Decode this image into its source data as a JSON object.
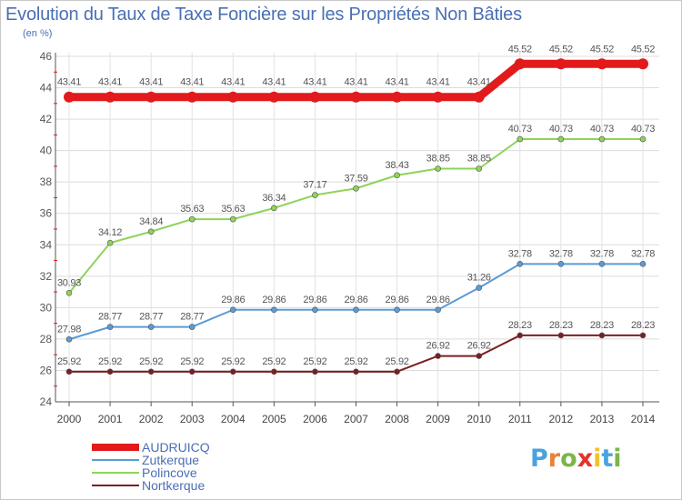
{
  "title": "Evolution du Taux de Taxe Foncière sur les Propriétés Non Bâties",
  "unit": "(en %)",
  "logo": {
    "letters": [
      "P",
      "r",
      "o",
      "x",
      "i",
      "t",
      "i"
    ],
    "colors": [
      "#4aa3df",
      "#e8823a",
      "#7ab648",
      "#e0342a",
      "#f2c12e",
      "#4aa3df",
      "#7ab648"
    ]
  },
  "chart_data": {
    "type": "line",
    "x": [
      "2000",
      "2001",
      "2002",
      "2003",
      "2004",
      "2005",
      "2006",
      "2007",
      "2008",
      "2009",
      "2010",
      "2011",
      "2012",
      "2013",
      "2014"
    ],
    "ylim": [
      24,
      46
    ],
    "yticks": [
      24,
      26,
      28,
      30,
      32,
      34,
      36,
      38,
      40,
      42,
      44,
      46
    ],
    "grid": true,
    "legend_position": "bottom-left",
    "series": [
      {
        "name": "AUDRUICQ",
        "color": "#e31a1c",
        "values": [
          43.41,
          43.41,
          43.41,
          43.41,
          43.41,
          43.41,
          43.41,
          43.41,
          43.41,
          43.41,
          43.41,
          45.52,
          45.52,
          45.52,
          45.52
        ],
        "labels": [
          "43.41",
          "43.41",
          "43.41",
          "43.41",
          "43.41",
          "43.41",
          "43.41",
          "43.41",
          "43.41",
          "43.41",
          "43.41",
          "45.52",
          "45.52",
          "45.52",
          "45.52"
        ]
      },
      {
        "name": "Zutkerque",
        "color": "#5b9bd5",
        "values": [
          27.98,
          28.77,
          28.77,
          28.77,
          29.86,
          29.86,
          29.86,
          29.86,
          29.86,
          29.86,
          31.26,
          32.78,
          32.78,
          32.78,
          32.78
        ],
        "labels": [
          "27.98",
          "28.77",
          "28.77",
          "28.77",
          "29.86",
          "29.86",
          "29.86",
          "29.86",
          "29.86",
          "29.86",
          "31.26",
          "32.78",
          "32.78",
          "32.78",
          "32.78"
        ]
      },
      {
        "name": "Polincove",
        "color": "#8fd35a",
        "values": [
          30.93,
          34.12,
          34.84,
          35.63,
          35.63,
          36.34,
          37.17,
          37.59,
          38.43,
          38.85,
          38.85,
          40.73,
          40.73,
          40.73,
          40.73
        ],
        "labels": [
          "30.93",
          "34.12",
          "34.84",
          "35.63",
          "35.63",
          "36.34",
          "37.17",
          "37.59",
          "38.43",
          "38.85",
          "38.85",
          "40.73",
          "40.73",
          "40.73",
          "40.73"
        ]
      },
      {
        "name": "Nortkerque",
        "color": "#7a1f23",
        "values": [
          25.92,
          25.92,
          25.92,
          25.92,
          25.92,
          25.92,
          25.92,
          25.92,
          25.92,
          26.92,
          26.92,
          28.23,
          28.23,
          28.23,
          28.23
        ],
        "labels": [
          "25.92",
          "25.92",
          "25.92",
          "25.92",
          "25.92",
          "25.92",
          "25.92",
          "25.92",
          "25.92",
          "26.92",
          "26.92",
          "28.23",
          "28.23",
          "28.23",
          "28.23"
        ]
      }
    ]
  }
}
